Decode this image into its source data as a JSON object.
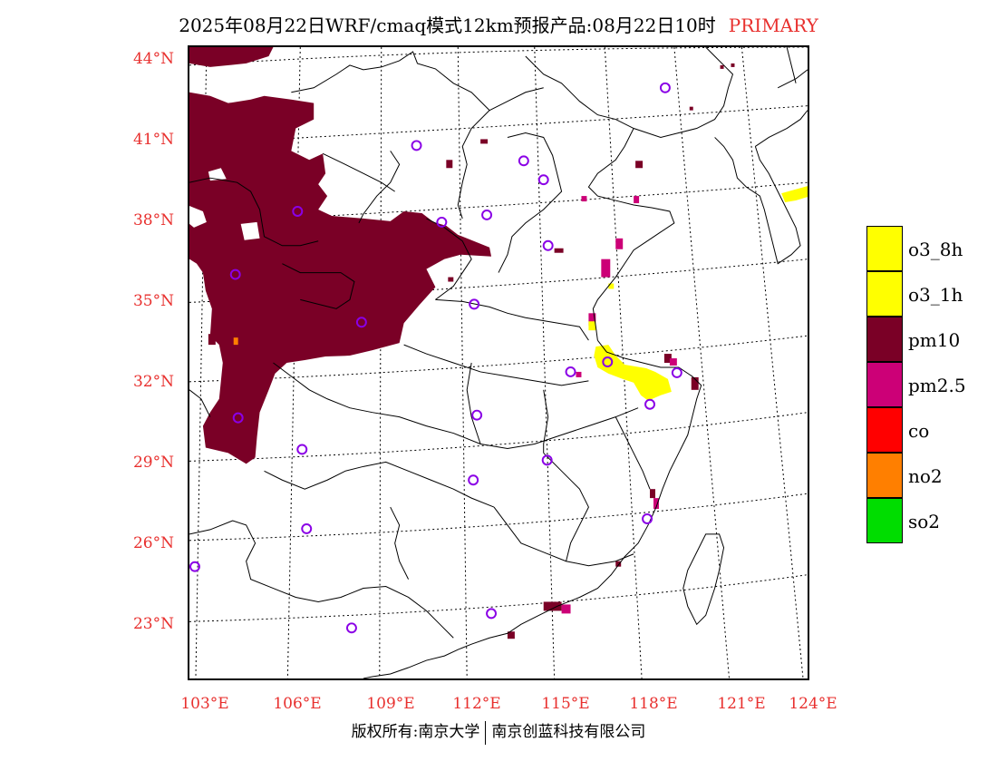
{
  "title": {
    "main": "2025年08月22日WRF/cmaq模式12km预报产品:08月22日10时",
    "tag": "PRIMARY"
  },
  "axes": {
    "lat_labels": [
      "44°N",
      "41°N",
      "38°N",
      "35°N",
      "32°N",
      "29°N",
      "26°N",
      "23°N"
    ],
    "lon_labels": [
      "103°E",
      "106°E",
      "109°E",
      "112°E",
      "115°E",
      "118°E",
      "121°E",
      "124°E"
    ]
  },
  "legend": {
    "items": [
      {
        "label": "o3_8h",
        "color": "#ffff00"
      },
      {
        "label": "o3_1h",
        "color": "#ffff00"
      },
      {
        "label": "pm10",
        "color": "#7a0026"
      },
      {
        "label": "pm2.5",
        "color": "#cc0077"
      },
      {
        "label": "co",
        "color": "#ff0000"
      },
      {
        "label": "no2",
        "color": "#ff7f00"
      },
      {
        "label": "so2",
        "color": "#00dd00"
      }
    ]
  },
  "footer": {
    "left": "版权所有:南京大学",
    "right": "南京创蓝科技有限公司"
  },
  "colors": {
    "pm10": "#7a0026",
    "pm25": "#cc0077",
    "o3": "#ffff00",
    "station": "#8a00e6",
    "accent": "#e8302e"
  }
}
